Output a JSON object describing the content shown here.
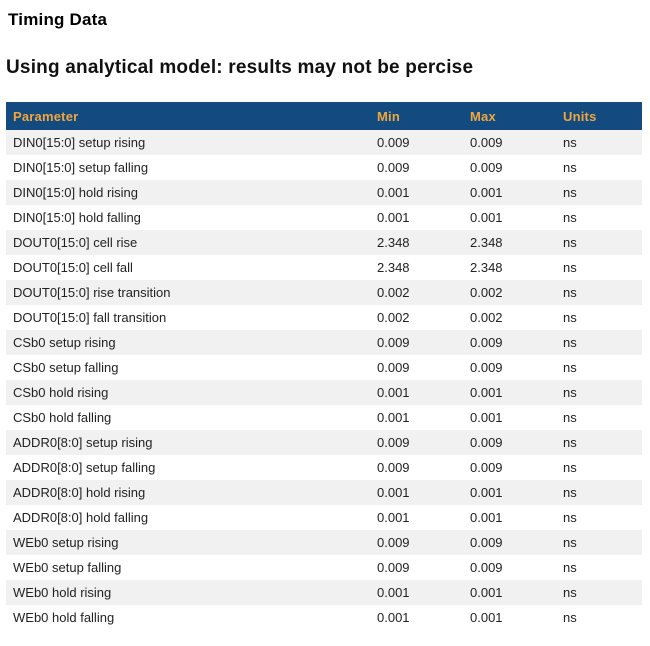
{
  "page": {
    "title": "Timing Data",
    "subtitle": "Using analytical model: results may not be percise"
  },
  "colors": {
    "header_bg": "#134a80",
    "header_text": "#f0a63d",
    "row_alt_bg": "#f1f1f2",
    "body_text": "#222222"
  },
  "table": {
    "columns": [
      "Parameter",
      "Min",
      "Max",
      "Units"
    ],
    "rows": [
      [
        "DIN0[15:0] setup rising",
        "0.009",
        "0.009",
        "ns"
      ],
      [
        "DIN0[15:0] setup falling",
        "0.009",
        "0.009",
        "ns"
      ],
      [
        "DIN0[15:0] hold rising",
        "0.001",
        "0.001",
        "ns"
      ],
      [
        "DIN0[15:0] hold falling",
        "0.001",
        "0.001",
        "ns"
      ],
      [
        "DOUT0[15:0] cell rise",
        "2.348",
        "2.348",
        "ns"
      ],
      [
        "DOUT0[15:0] cell fall",
        "2.348",
        "2.348",
        "ns"
      ],
      [
        "DOUT0[15:0] rise transition",
        "0.002",
        "0.002",
        "ns"
      ],
      [
        "DOUT0[15:0] fall transition",
        "0.002",
        "0.002",
        "ns"
      ],
      [
        "CSb0 setup rising",
        "0.009",
        "0.009",
        "ns"
      ],
      [
        "CSb0 setup falling",
        "0.009",
        "0.009",
        "ns"
      ],
      [
        "CSb0 hold rising",
        "0.001",
        "0.001",
        "ns"
      ],
      [
        "CSb0 hold falling",
        "0.001",
        "0.001",
        "ns"
      ],
      [
        "ADDR0[8:0] setup rising",
        "0.009",
        "0.009",
        "ns"
      ],
      [
        "ADDR0[8:0] setup falling",
        "0.009",
        "0.009",
        "ns"
      ],
      [
        "ADDR0[8:0] hold rising",
        "0.001",
        "0.001",
        "ns"
      ],
      [
        "ADDR0[8:0] hold falling",
        "0.001",
        "0.001",
        "ns"
      ],
      [
        "WEb0 setup rising",
        "0.009",
        "0.009",
        "ns"
      ],
      [
        "WEb0 setup falling",
        "0.009",
        "0.009",
        "ns"
      ],
      [
        "WEb0 hold rising",
        "0.001",
        "0.001",
        "ns"
      ],
      [
        "WEb0 hold falling",
        "0.001",
        "0.001",
        "ns"
      ]
    ]
  }
}
